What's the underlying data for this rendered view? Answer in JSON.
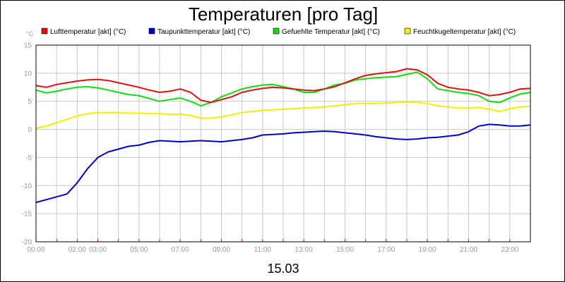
{
  "chart_data": {
    "type": "line",
    "title": "Temperaturen [pro Tag]",
    "xlabel": "15.03",
    "ylabel": "°C",
    "ylim": [
      -20,
      15
    ],
    "yticks": [
      15,
      10,
      5,
      0,
      -5,
      -10,
      -15,
      -20
    ],
    "xlim": [
      0,
      24
    ],
    "xticks": [
      {
        "h": 0,
        "label": "00:00"
      },
      {
        "h": 2,
        "label": "02:00"
      },
      {
        "h": 3,
        "label": "03:00"
      },
      {
        "h": 5,
        "label": "05:00"
      },
      {
        "h": 7,
        "label": "07:00"
      },
      {
        "h": 9,
        "label": "09:00"
      },
      {
        "h": 11,
        "label": "11:00"
      },
      {
        "h": 13,
        "label": "13:00"
      },
      {
        "h": 15,
        "label": "15:00"
      },
      {
        "h": 17,
        "label": "17:00"
      },
      {
        "h": 19,
        "label": "19:00"
      },
      {
        "h": 21,
        "label": "21:00"
      },
      {
        "h": 23,
        "label": "23:00"
      }
    ],
    "series": [
      {
        "name": "Lufttemperatur [akt] (°C)",
        "color": "#e01010",
        "x": [
          0,
          0.5,
          1,
          1.5,
          2,
          2.5,
          3,
          3.5,
          4,
          4.5,
          5,
          5.5,
          6,
          6.5,
          7,
          7.5,
          8,
          8.5,
          9,
          9.5,
          10,
          10.5,
          11,
          11.5,
          12,
          12.5,
          13,
          13.5,
          14,
          14.5,
          15,
          15.5,
          16,
          16.5,
          17,
          17.5,
          18,
          18.5,
          19,
          19.5,
          20,
          20.5,
          21,
          21.5,
          22,
          22.5,
          23,
          23.5,
          24
        ],
        "values": [
          7.8,
          7.5,
          8.0,
          8.3,
          8.6,
          8.8,
          8.9,
          8.7,
          8.3,
          7.9,
          7.5,
          7.0,
          6.6,
          6.8,
          7.2,
          6.6,
          5.2,
          4.8,
          5.3,
          5.8,
          6.6,
          7.0,
          7.3,
          7.5,
          7.4,
          7.2,
          7.0,
          6.9,
          7.2,
          7.6,
          8.3,
          9.0,
          9.6,
          9.9,
          10.1,
          10.3,
          10.8,
          10.6,
          9.7,
          8.2,
          7.5,
          7.2,
          7.0,
          6.6,
          6.0,
          6.2,
          6.6,
          7.2,
          7.3
        ]
      },
      {
        "name": "Taupunkttemperatur [akt] (°C)",
        "color": "#0000cc",
        "x": [
          0,
          0.5,
          1,
          1.5,
          2,
          2.5,
          3,
          3.5,
          4,
          4.5,
          5,
          5.5,
          6,
          6.5,
          7,
          7.5,
          8,
          8.5,
          9,
          9.5,
          10,
          10.5,
          11,
          11.5,
          12,
          12.5,
          13,
          13.5,
          14,
          14.5,
          15,
          15.5,
          16,
          16.5,
          17,
          17.5,
          18,
          18.5,
          19,
          19.5,
          20,
          20.5,
          21,
          21.5,
          22,
          22.5,
          23,
          23.5,
          24
        ],
        "values": [
          -13.0,
          -12.5,
          -12.0,
          -11.5,
          -9.5,
          -7.0,
          -5.0,
          -4.0,
          -3.5,
          -3.0,
          -2.8,
          -2.3,
          -2.0,
          -2.1,
          -2.2,
          -2.1,
          -2.0,
          -2.1,
          -2.2,
          -2.0,
          -1.8,
          -1.5,
          -1.0,
          -0.9,
          -0.8,
          -0.6,
          -0.5,
          -0.4,
          -0.3,
          -0.4,
          -0.6,
          -0.8,
          -1.0,
          -1.3,
          -1.5,
          -1.7,
          -1.8,
          -1.7,
          -1.5,
          -1.4,
          -1.2,
          -1.0,
          -0.4,
          0.6,
          0.9,
          0.8,
          0.6,
          0.6,
          0.8
        ]
      },
      {
        "name": "Gefuehlte Temperatur [akt] (°C)",
        "color": "#10dd10",
        "x": [
          0,
          0.5,
          1,
          1.5,
          2,
          2.5,
          3,
          3.5,
          4,
          4.5,
          5,
          5.5,
          6,
          6.5,
          7,
          7.5,
          8,
          8.5,
          9,
          9.5,
          10,
          10.5,
          11,
          11.5,
          12,
          12.5,
          13,
          13.5,
          14,
          14.5,
          15,
          15.5,
          16,
          16.5,
          17,
          17.5,
          18,
          18.5,
          19,
          19.5,
          20,
          20.5,
          21,
          21.5,
          22,
          22.5,
          23,
          23.5,
          24
        ],
        "values": [
          7.0,
          6.5,
          6.8,
          7.2,
          7.5,
          7.6,
          7.4,
          7.0,
          6.6,
          6.2,
          6.0,
          5.5,
          5.0,
          5.3,
          5.6,
          5.0,
          4.2,
          4.8,
          5.8,
          6.5,
          7.2,
          7.6,
          7.9,
          8.0,
          7.6,
          7.2,
          6.6,
          6.6,
          7.2,
          7.9,
          8.2,
          8.8,
          9.0,
          9.2,
          9.3,
          9.4,
          9.8,
          10.2,
          9.0,
          7.2,
          6.9,
          6.6,
          6.4,
          6.0,
          5.0,
          4.8,
          5.6,
          6.3,
          6.6
        ]
      },
      {
        "name": "Feuchtkugeltemperatur [akt] (°C)",
        "color": "#f0f000",
        "x": [
          0,
          0.5,
          1,
          1.5,
          2,
          2.5,
          3,
          3.5,
          4,
          4.5,
          5,
          5.5,
          6,
          6.5,
          7,
          7.5,
          8,
          8.5,
          9,
          9.5,
          10,
          10.5,
          11,
          11.5,
          12,
          12.5,
          13,
          13.5,
          14,
          14.5,
          15,
          15.5,
          16,
          16.5,
          17,
          17.5,
          18,
          18.5,
          19,
          19.5,
          20,
          20.5,
          21,
          21.5,
          22,
          22.5,
          23,
          23.5,
          24
        ],
        "values": [
          0.2,
          0.6,
          1.2,
          1.8,
          2.4,
          2.8,
          3.0,
          3.0,
          3.0,
          2.9,
          2.9,
          2.8,
          2.8,
          2.7,
          2.7,
          2.5,
          2.0,
          2.0,
          2.2,
          2.6,
          3.0,
          3.2,
          3.4,
          3.5,
          3.6,
          3.7,
          3.8,
          3.9,
          4.0,
          4.2,
          4.4,
          4.6,
          4.6,
          4.6,
          4.7,
          4.8,
          4.9,
          4.8,
          4.6,
          4.2,
          4.0,
          3.8,
          3.8,
          3.9,
          3.6,
          3.2,
          3.7,
          4.0,
          4.1
        ]
      }
    ]
  }
}
